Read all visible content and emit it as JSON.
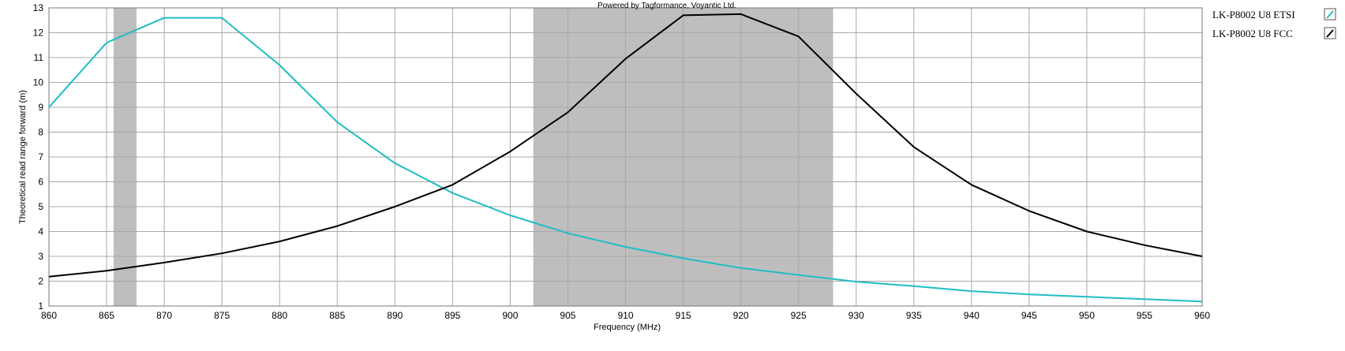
{
  "chart_data": {
    "type": "line",
    "credit": "Powered by Tagformance, Voyantic Ltd.",
    "xlabel": "Frequency (MHz)",
    "ylabel": "Theoretical read range forward (m)",
    "xlim": [
      860,
      960
    ],
    "ylim": [
      1,
      13
    ],
    "x_ticks": [
      860,
      865,
      870,
      875,
      880,
      885,
      890,
      895,
      900,
      905,
      910,
      915,
      920,
      925,
      930,
      935,
      940,
      945,
      950,
      955,
      960
    ],
    "y_ticks": [
      1,
      2,
      3,
      4,
      5,
      6,
      7,
      8,
      9,
      10,
      11,
      12,
      13
    ],
    "grid": true,
    "legend_position": "right",
    "bands": [
      {
        "x0": 865.6,
        "x1": 867.6,
        "color": "#bebebe"
      },
      {
        "x0": 902,
        "x1": 928,
        "color": "#bebebe"
      }
    ],
    "series": [
      {
        "name": "LK-P8002 U8 ETSI",
        "color": "#1fbdc4",
        "x": [
          860,
          865,
          870,
          875,
          880,
          885,
          890,
          895,
          900,
          905,
          910,
          915,
          920,
          925,
          930,
          935,
          940,
          945,
          950,
          955,
          960
        ],
        "y": [
          9.0,
          11.6,
          12.6,
          12.6,
          10.7,
          8.4,
          6.75,
          5.55,
          4.65,
          3.93,
          3.38,
          2.92,
          2.53,
          2.25,
          1.98,
          1.8,
          1.6,
          1.47,
          1.37,
          1.28,
          1.18
        ]
      },
      {
        "name": "LK-P8002 U8 FCC",
        "color": "#000000",
        "x": [
          860,
          865,
          870,
          875,
          880,
          885,
          890,
          895,
          900,
          905,
          910,
          915,
          920,
          925,
          930,
          935,
          940,
          945,
          950,
          955,
          960
        ],
        "y": [
          2.18,
          2.42,
          2.75,
          3.12,
          3.6,
          4.22,
          5.0,
          5.88,
          7.22,
          8.8,
          10.95,
          12.7,
          12.75,
          11.85,
          9.55,
          7.4,
          5.88,
          4.83,
          4.0,
          3.45,
          3.0
        ]
      }
    ]
  }
}
